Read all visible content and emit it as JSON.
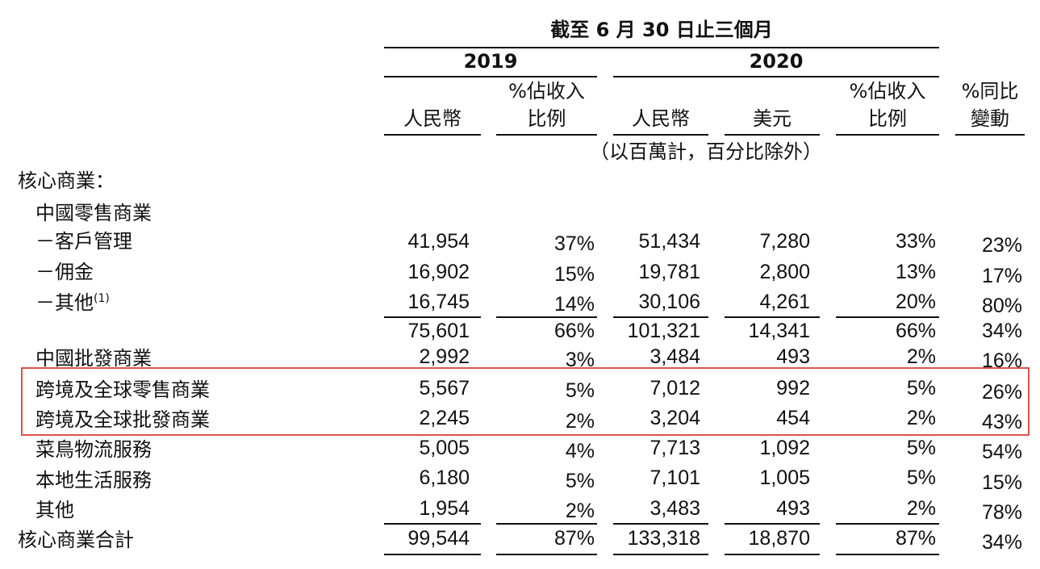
{
  "header": {
    "period": "截至 6 月 30 日止三個月",
    "year_2019": "2019",
    "year_2020": "2020",
    "col_rmb_2019": "人民幣",
    "col_pct_rev_2019_l1": "%佔收入",
    "col_pct_rev_2019_l2": "比例",
    "col_rmb_2020": "人民幣",
    "col_usd_2020": "美元",
    "col_pct_rev_2020_l1": "%佔收入",
    "col_pct_rev_2020_l2": "比例",
    "col_yoy_l1": "%同比",
    "col_yoy_l2": "變動",
    "units_note": "（以百萬計，百分比除外）"
  },
  "section_title": "核心商業：",
  "subsection_title": "中國零售商業",
  "rows": [
    {
      "label": "－客戶管理",
      "sup": "",
      "rmb2019": "41,954",
      "pct2019": "37%",
      "rmb2020": "51,434",
      "usd2020": "7,280",
      "pct2020": "33%",
      "yoy": "23%"
    },
    {
      "label": "－佣金",
      "sup": "",
      "rmb2019": "16,902",
      "pct2019": "15%",
      "rmb2020": "19,781",
      "usd2020": "2,800",
      "pct2020": "13%",
      "yoy": "17%"
    },
    {
      "label": "－其他",
      "sup": "(1)",
      "rmb2019": "16,745",
      "pct2019": "14%",
      "rmb2020": "30,106",
      "usd2020": "4,261",
      "pct2020": "20%",
      "yoy": "80%"
    },
    {
      "label": "",
      "sup": "",
      "rmb2019": "75,601",
      "pct2019": "66%",
      "rmb2020": "101,321",
      "usd2020": "14,341",
      "pct2020": "66%",
      "yoy": "34%"
    },
    {
      "label": "中國批發商業",
      "sup": "",
      "rmb2019": "2,992",
      "pct2019": "3%",
      "rmb2020": "3,484",
      "usd2020": "493",
      "pct2020": "2%",
      "yoy": "16%"
    },
    {
      "label": "跨境及全球零售商業",
      "sup": "",
      "rmb2019": "5,567",
      "pct2019": "5%",
      "rmb2020": "7,012",
      "usd2020": "992",
      "pct2020": "5%",
      "yoy": "26%"
    },
    {
      "label": "跨境及全球批發商業",
      "sup": "",
      "rmb2019": "2,245",
      "pct2019": "2%",
      "rmb2020": "3,204",
      "usd2020": "454",
      "pct2020": "2%",
      "yoy": "43%"
    },
    {
      "label": "菜鳥物流服務",
      "sup": "",
      "rmb2019": "5,005",
      "pct2019": "4%",
      "rmb2020": "7,713",
      "usd2020": "1,092",
      "pct2020": "5%",
      "yoy": "54%"
    },
    {
      "label": "本地生活服務",
      "sup": "",
      "rmb2019": "6,180",
      "pct2019": "5%",
      "rmb2020": "7,101",
      "usd2020": "1,005",
      "pct2020": "5%",
      "yoy": "15%"
    },
    {
      "label": "其他",
      "sup": "",
      "rmb2019": "1,954",
      "pct2019": "2%",
      "rmb2020": "3,483",
      "usd2020": "493",
      "pct2020": "2%",
      "yoy": "78%"
    },
    {
      "label": "核心商業合計",
      "sup": "",
      "rmb2019": "99,544",
      "pct2019": "87%",
      "rmb2020": "133,318",
      "usd2020": "18,870",
      "pct2020": "87%",
      "yoy": "34%"
    }
  ],
  "colors": {
    "text": "#111111",
    "highlight": "#d9534f"
  }
}
